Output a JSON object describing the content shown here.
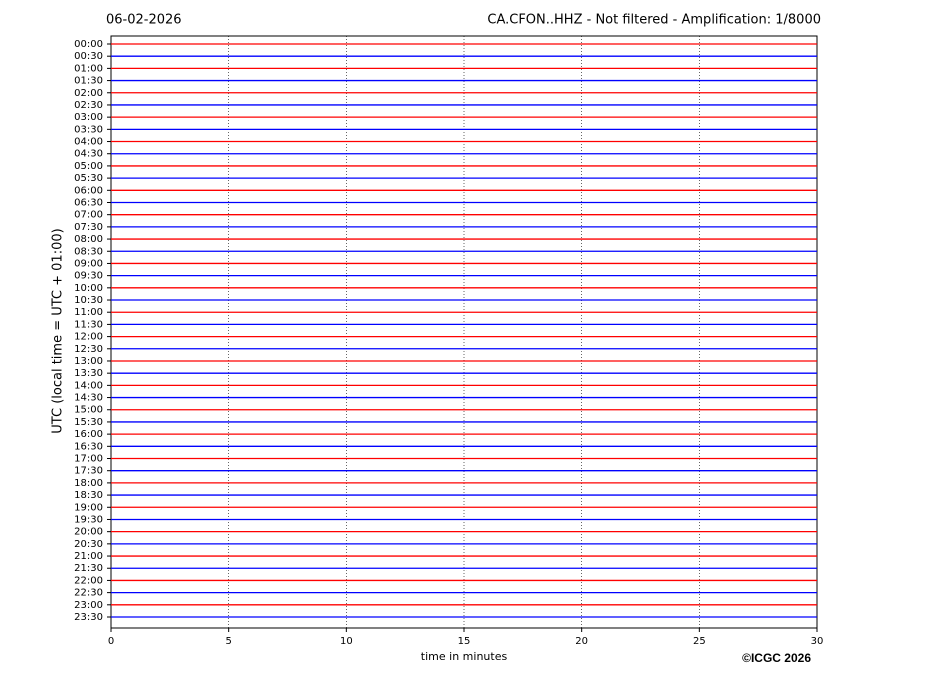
{
  "chart_data": {
    "type": "helicorder",
    "title_left": "06-02-2026",
    "title_right": "CA.CFON..HHZ - Not filtered - Amplification: 1/8000",
    "y_label": "UTC (local time = UTC + 01:00)",
    "x_label": "time in minutes",
    "copyright": "©ICGC 2026",
    "categories": [
      "00:00",
      "00:30",
      "01:00",
      "01:30",
      "02:00",
      "02:30",
      "03:00",
      "03:30",
      "04:00",
      "04:30",
      "05:00",
      "05:30",
      "06:00",
      "06:30",
      "07:00",
      "07:30",
      "08:00",
      "08:30",
      "09:00",
      "09:30",
      "10:00",
      "10:30",
      "11:00",
      "11:30",
      "12:00",
      "12:30",
      "13:00",
      "13:30",
      "14:00",
      "14:30",
      "15:00",
      "15:30",
      "16:00",
      "16:30",
      "17:00",
      "17:30",
      "18:00",
      "18:30",
      "19:00",
      "19:30",
      "20:00",
      "20:30",
      "21:00",
      "21:30",
      "22:00",
      "22:30",
      "23:00",
      "23:30"
    ],
    "colors": [
      "#ff0000",
      "#0000ff"
    ],
    "xlim": [
      0,
      30
    ],
    "xticks": [
      0,
      5,
      10,
      15,
      20,
      25,
      30
    ],
    "grid": true
  }
}
